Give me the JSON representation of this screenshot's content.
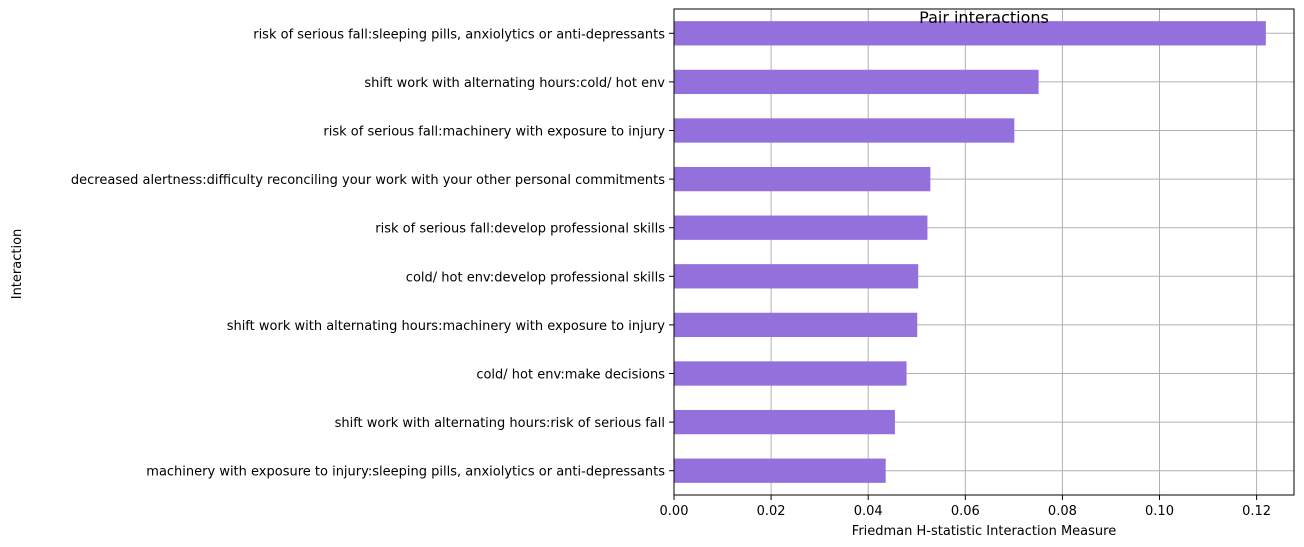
{
  "chart_data": {
    "type": "bar",
    "orientation": "horizontal",
    "title": "Pair interactions",
    "xlabel": "Friedman H-statistic Interaction Measure",
    "ylabel": "Interaction",
    "xlim": [
      0.0,
      0.1277
    ],
    "xticks": [
      0.0,
      0.02,
      0.04,
      0.06,
      0.08,
      0.1,
      0.12
    ],
    "xtick_labels": [
      "0.00",
      "0.02",
      "0.04",
      "0.06",
      "0.08",
      "0.10",
      "0.12"
    ],
    "grid": true,
    "bar_color": "#9370db",
    "categories": [
      "risk of serious fall:sleeping pills, anxiolytics or anti-depressants",
      "shift work with alternating hours:cold/ hot env",
      "risk of serious fall:machinery with exposure to injury",
      "decreased alertness:difficulty reconciling your work with your other personal commitments",
      "risk of serious fall:develop professional skills",
      "cold/ hot env:develop professional skills",
      "shift work with alternating hours:machinery with exposure to injury",
      "cold/ hot env:make decisions",
      "shift work with alternating hours:risk of serious fall",
      "machinery with exposure to injury:sleeping pills, anxiolytics or anti-depressants"
    ],
    "values": [
      0.1219,
      0.0751,
      0.0701,
      0.0528,
      0.0522,
      0.0503,
      0.0501,
      0.0479,
      0.0455,
      0.0436
    ]
  }
}
